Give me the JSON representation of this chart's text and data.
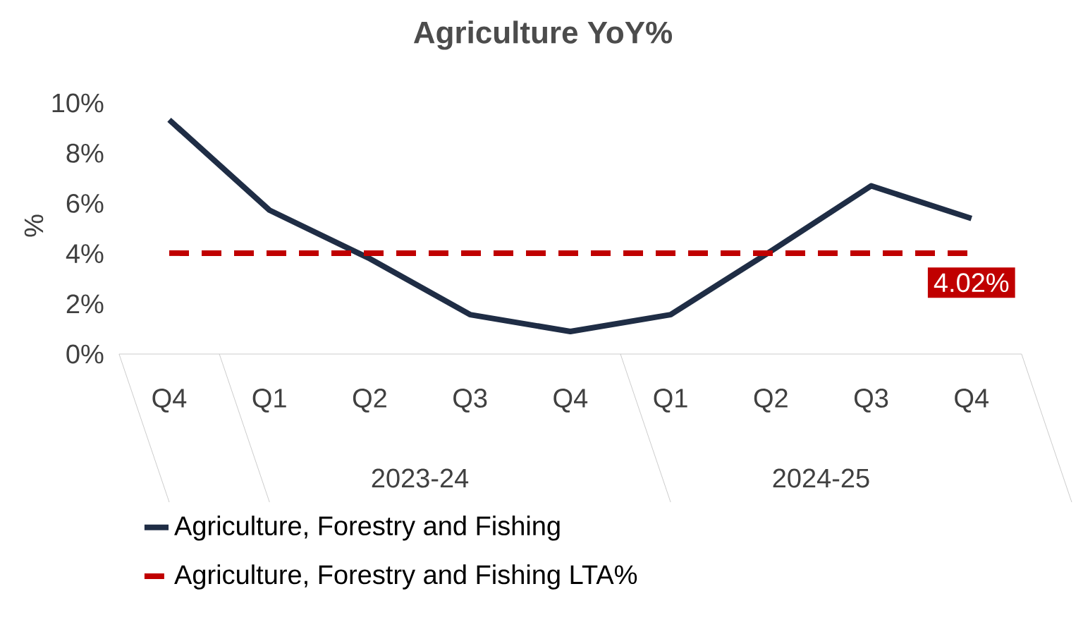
{
  "chart_data": {
    "type": "line",
    "title": "Agriculture YoY%",
    "ylabel": "%",
    "categories": [
      "Q4",
      "Q1",
      "Q2",
      "Q3",
      "Q4",
      "Q1",
      "Q2",
      "Q3",
      "Q4"
    ],
    "series": [
      {
        "name": "Agriculture, Forestry and Fishing",
        "color": "#1f2d45",
        "line_style": "solid",
        "values": [
          9.33,
          5.73,
          3.8,
          1.57,
          0.9,
          1.57,
          4.1,
          6.7,
          5.4
        ]
      },
      {
        "name": "Agriculture, Forestry and Fishing LTA%",
        "color": "#c00000",
        "line_style": "dashed",
        "values": [
          4.02,
          4.02,
          4.02,
          4.02,
          4.02,
          4.02,
          4.02,
          4.02,
          4.02
        ],
        "value_labels": [
          null,
          null,
          null,
          null,
          null,
          null,
          null,
          null,
          "4.02%"
        ]
      }
    ],
    "annotations": [
      "2023-24",
      "2024-25"
    ],
    "ylim": [
      0,
      10
    ],
    "yticks": [
      {
        "value": 0,
        "label": "0%"
      },
      {
        "value": 2,
        "label": "2%"
      },
      {
        "value": 4,
        "label": "4%"
      },
      {
        "value": 6,
        "label": "6%"
      },
      {
        "value": 8,
        "label": "8%"
      },
      {
        "value": 10,
        "label": "10%"
      }
    ],
    "grid": false,
    "legend": "bottom",
    "marker": "none"
  }
}
